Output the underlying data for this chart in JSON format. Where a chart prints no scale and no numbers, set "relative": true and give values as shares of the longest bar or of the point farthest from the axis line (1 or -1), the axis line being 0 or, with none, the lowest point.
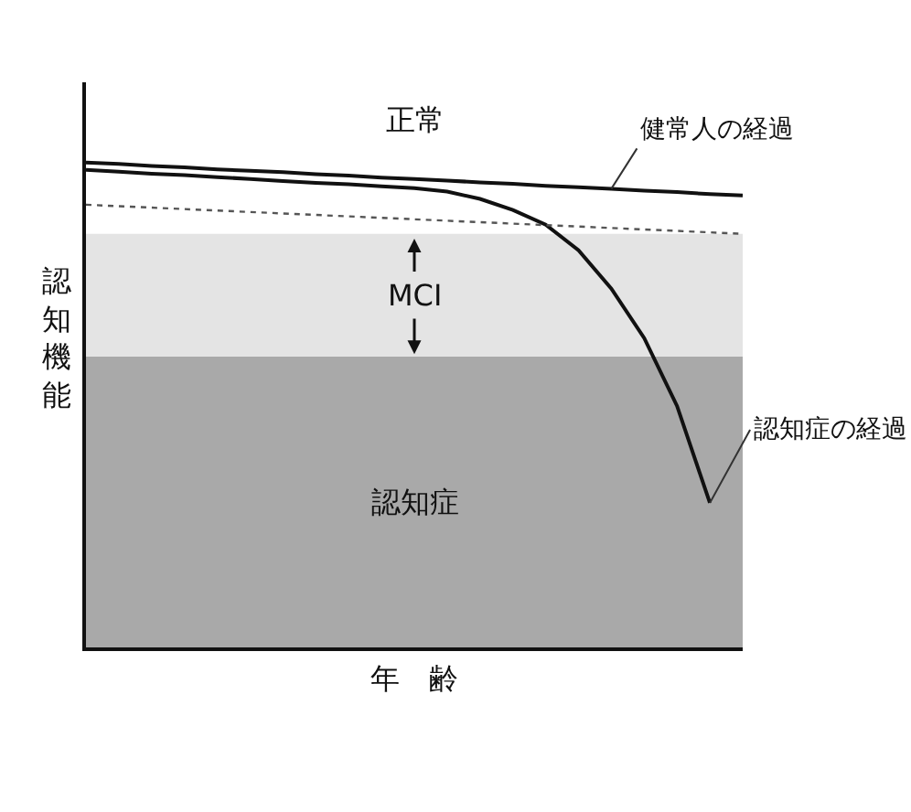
{
  "chart_data": {
    "type": "line",
    "relative": true,
    "xlabel": "年　齢",
    "ylabel": "認知機能",
    "categories": [
      null,
      null,
      null,
      null,
      null,
      null,
      null,
      null,
      null,
      null,
      null,
      null,
      null,
      null,
      null,
      null,
      null,
      null,
      null,
      null,
      null
    ],
    "series": [
      {
        "name": "健常人の経過",
        "color": "#111111",
        "values": [
          1,
          0.997,
          0.993,
          0.99,
          0.986,
          0.983,
          0.98,
          0.976,
          0.973,
          0.969,
          0.966,
          0.963,
          0.959,
          0.956,
          0.952,
          0.949,
          0.946,
          0.942,
          0.939,
          0.935,
          0.932
        ]
      },
      {
        "name": "認知症の経過",
        "color": "#111111",
        "values": [
          0.985,
          0.981,
          0.977,
          0.974,
          0.97,
          0.966,
          0.962,
          0.958,
          0.955,
          0.951,
          0.947,
          0.94,
          0.925,
          0.902,
          0.872,
          0.819,
          0.74,
          0.638,
          0.498,
          0.298,
          null
        ]
      },
      {
        "color": "#555555",
        "line_style": "dotted",
        "values": [
          0.913,
          0.91,
          0.907,
          0.904,
          0.901,
          0.898,
          0.895,
          0.892,
          0.889,
          0.886,
          0.883,
          0.88,
          0.877,
          0.874,
          0.871,
          0.868,
          0.865,
          0.862,
          0.859,
          0.856,
          0.853
        ]
      }
    ],
    "bands": [
      {
        "axis": "y",
        "from": 0,
        "to": 0.6,
        "label": "認知症",
        "color": "#a9a9a9"
      },
      {
        "axis": "y",
        "from": 0.6,
        "to": 0.853,
        "label": "MCI",
        "color": "#e4e4e4"
      }
    ],
    "annotations": [
      "正常"
    ],
    "grid": false,
    "legend": false,
    "marker": "none",
    "line_style": "solid"
  }
}
